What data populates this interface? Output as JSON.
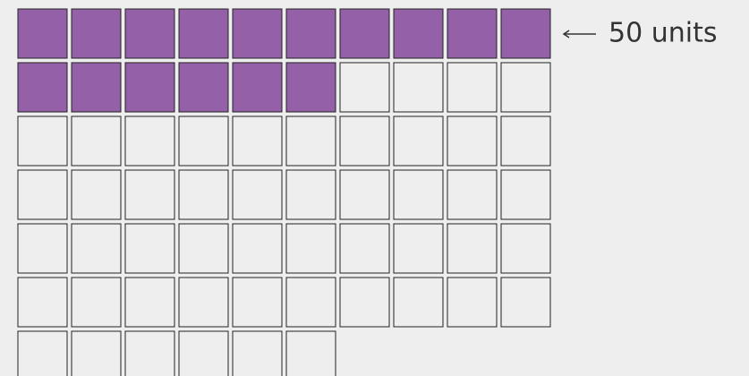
{
  "chart_data": {
    "type": "waffle",
    "total": 66,
    "filled": 16,
    "columns": 10,
    "color": "#9461a8",
    "annotation": "50 units"
  }
}
